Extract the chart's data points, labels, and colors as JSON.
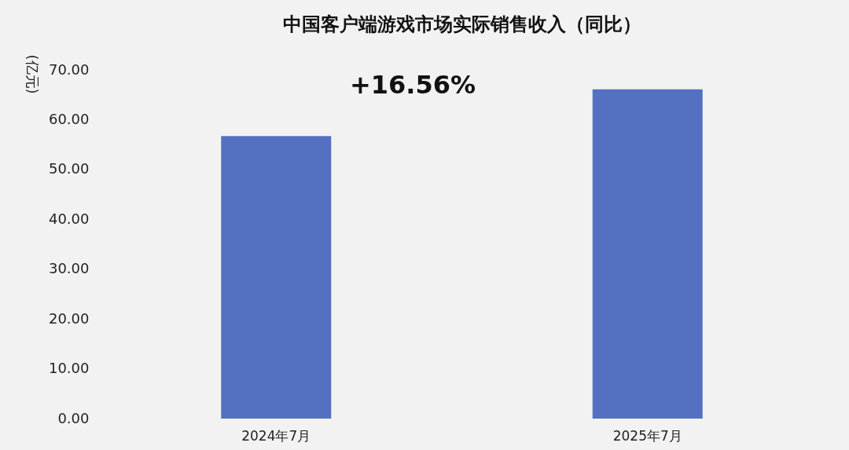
{
  "chart_data": {
    "type": "bar",
    "title": "中国客户端游戏市场实际销售收入（同比）",
    "ylabel": "(亿元)",
    "categories": [
      "2024年7月",
      "2025年7月"
    ],
    "series": [
      {
        "color": "#5470c0",
        "values": [
          56.7,
          66.1
        ]
      }
    ],
    "ylim": [
      0,
      70
    ],
    "yticks": [
      {
        "value": 0,
        "label": "0.00"
      },
      {
        "value": 10,
        "label": "10.00"
      },
      {
        "value": 20,
        "label": "20.00"
      },
      {
        "value": 30,
        "label": "30.00"
      },
      {
        "value": 40,
        "label": "40.00"
      },
      {
        "value": 50,
        "label": "50.00"
      },
      {
        "value": 60,
        "label": "60.00"
      },
      {
        "value": 70,
        "label": "70.00"
      }
    ],
    "annotations": [
      "+16.56%"
    ],
    "grid": false
  }
}
